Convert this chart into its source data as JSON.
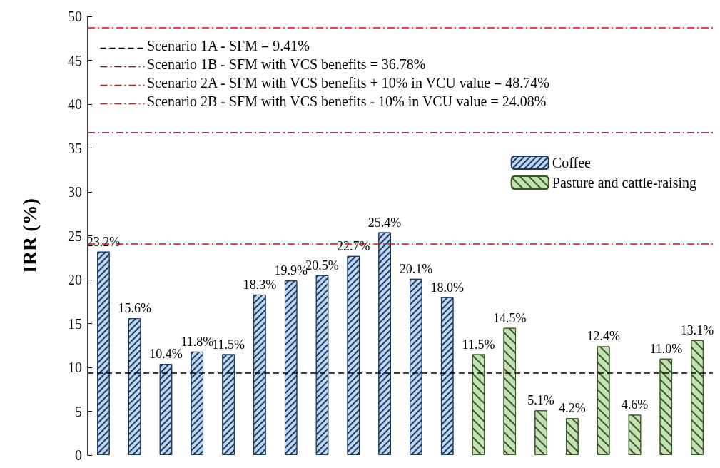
{
  "chart_data": {
    "type": "bar",
    "ylabel": "IRR (%)",
    "categories": [
      null,
      null,
      null,
      null,
      null,
      null,
      null,
      null,
      null,
      null,
      null,
      null,
      null,
      null,
      null,
      null,
      null,
      null,
      null,
      null
    ],
    "series": [
      {
        "name": "Coffee",
        "color": "#bdd7ee",
        "values": [
          23.2,
          15.6,
          10.4,
          11.8,
          11.5,
          18.3,
          19.9,
          20.5,
          22.7,
          25.4,
          20.1,
          18.0,
          null,
          null,
          null,
          null,
          null,
          null,
          null,
          null
        ],
        "value_labels": [
          "23.2%",
          "15.6%",
          "10.4%",
          "11.8%",
          "11.5%",
          "18.3%",
          "19.9%",
          "20.5%",
          "22.7%",
          "25.4%",
          "20.1%",
          "18.0%",
          null,
          null,
          null,
          null,
          null,
          null,
          null,
          null
        ]
      },
      {
        "name": "Pasture and cattle-raising",
        "color": "#c5e0b4",
        "values": [
          null,
          null,
          null,
          null,
          null,
          null,
          null,
          null,
          null,
          null,
          null,
          null,
          11.5,
          14.5,
          5.1,
          4.2,
          12.4,
          4.6,
          11.0,
          13.1
        ],
        "value_labels": [
          null,
          null,
          null,
          null,
          null,
          null,
          null,
          null,
          null,
          null,
          null,
          null,
          "11.5%",
          "14.5%",
          "5.1%",
          "4.2%",
          "12.4%",
          "4.6%",
          "11.0%",
          "13.1%"
        ]
      }
    ],
    "ylim": [
      0,
      50
    ],
    "yticks": [
      0,
      5,
      10,
      15,
      20,
      25,
      30,
      35,
      40,
      45,
      50
    ],
    "grid": false,
    "legend": "right",
    "ref_lines": [
      {
        "axis": "y",
        "value": 9.41,
        "label": "Scenario 1A - SFM = 9.41%",
        "color": "#000000",
        "line_style": "dashed"
      },
      {
        "axis": "y",
        "value": 36.78,
        "label": "Scenario 1B - SFM with VCS benefits = 36.78%",
        "color": "#7b1010",
        "line_style": "dashed"
      },
      {
        "axis": "y",
        "value": 48.74,
        "label": "Scenario 2A - SFM with VCS benefits + 10% in VCU value = 48.74%",
        "color": "#ff0000",
        "line_style": "dashed"
      },
      {
        "axis": "y",
        "value": 24.08,
        "label": "Scenario 2B - SFM with VCS benefits - 10% in VCU value = 24.08%",
        "color": "#ff0000",
        "line_style": "dashed"
      }
    ]
  }
}
